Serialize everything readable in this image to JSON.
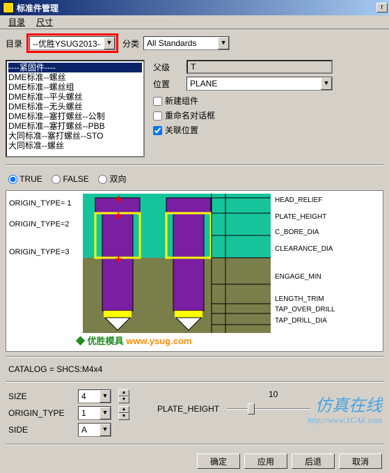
{
  "titlebar": {
    "title": "标准件管理",
    "close": "r"
  },
  "menu": {
    "tab1": "目录",
    "tab2": "尺寸"
  },
  "top": {
    "dir_label": "目录",
    "dir_value": "--优胜YSUG2013--",
    "class_label": "分类",
    "class_value": "All Standards"
  },
  "tree": {
    "items": [
      "----紧固件----",
      "DME标准--螺丝",
      "DME标准--螺丝组",
      "DME标准--平头螺丝",
      "DME标准--无头螺丝",
      "DME标准--塞打螺丝--公制",
      "DME标准--塞打螺丝--PBB",
      "大同标准--塞打螺丝--STO",
      "大同标准--螺丝"
    ],
    "selected_index": 0
  },
  "right": {
    "parent_label": "父级",
    "parent_value": "T",
    "pos_label": "位置",
    "pos_value": "PLANE",
    "chk_newcomp": "新建组件",
    "chk_rename": "重命名对话框",
    "chk_linkpos": "关联位置",
    "chk_newcomp_v": false,
    "chk_rename_v": false,
    "chk_linkpos_v": true
  },
  "radios": {
    "r1": "TRUE",
    "r2": "FALSE",
    "r3": "双向",
    "selected": "TRUE"
  },
  "diagram": {
    "origin1": "ORIGIN_TYPE= 1",
    "origin2": "ORIGIN_TYPE=2",
    "origin3": "ORIGIN_TYPE=3",
    "labels": [
      "HEAD_RELIEF",
      "PLATE_HEIGHT",
      "C_BORE_DIA",
      "CLEARANCE_DIA",
      "ENGAGE_MIN",
      "LENGTH_TRIM",
      "TAP_OVER_DRILL",
      "TAP_DRILL_DIA"
    ],
    "logo_text1": "优胜模具",
    "logo_text2": "www.ysug.com",
    "colors": {
      "bg_top": "#16c49c",
      "bg_bot": "#7a7e4a",
      "screw": "#7a1fa2",
      "yellow": "#ffff00",
      "marker": "#ff0000",
      "dims": "#000000"
    }
  },
  "catalog": {
    "text": "CATALOG = SHCS:M4x4"
  },
  "params": {
    "size_label": "SIZE",
    "size_value": "4",
    "ot_label": "ORIGIN_TYPE",
    "ot_value": "1",
    "side_label": "SIDE",
    "side_value": "A",
    "ph_label": "PLATE_HEIGHT",
    "ph_value": "10"
  },
  "buttons": {
    "ok": "确定",
    "apply": "应用",
    "back": "后退",
    "cancel": "取消"
  },
  "watermarks": {
    "big": "仿真在线",
    "url": "http://www.1CAE.com"
  }
}
